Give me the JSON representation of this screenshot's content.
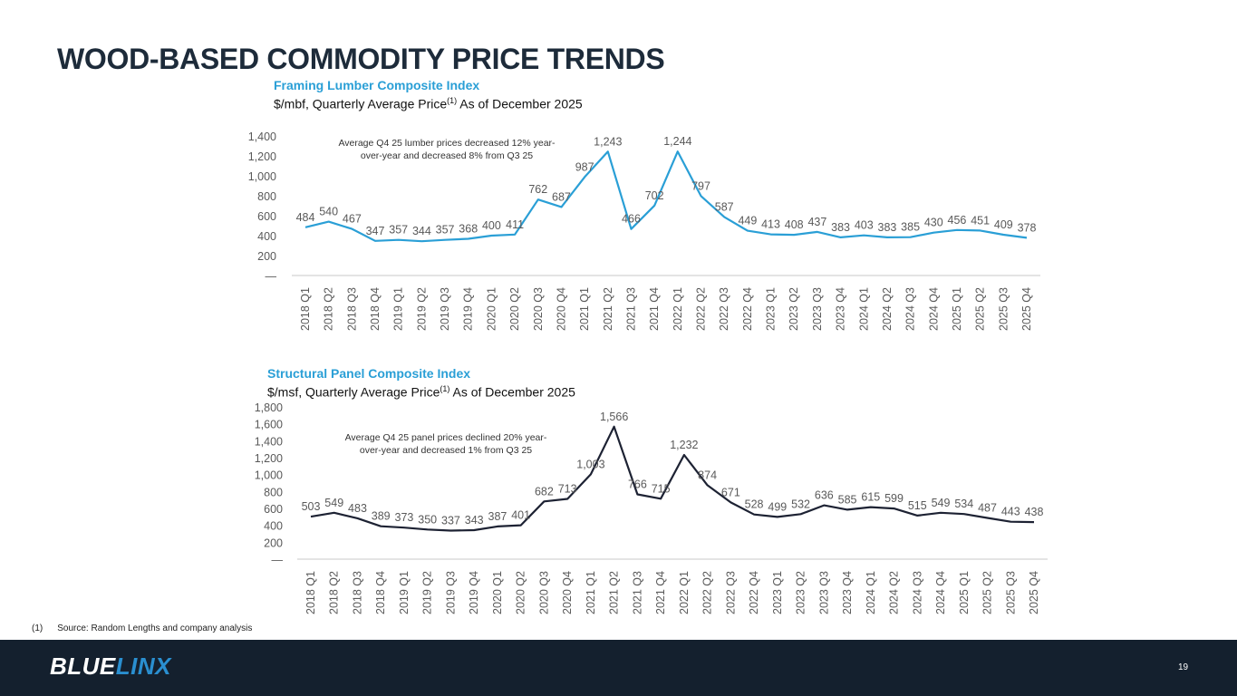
{
  "title": "WOOD-BASED COMMODITY PRICE TRENDS",
  "colors": {
    "lumber_line": "#2a9fd6",
    "panel_line": "#1d2233",
    "title": "#1d2b3a",
    "label": "#595959",
    "footer_bg": "#14202e",
    "logo_accent": "#2a8fd0"
  },
  "chart_data": [
    {
      "type": "line",
      "title": "Framing Lumber Composite Index",
      "subtitle": "$/mbf, Quarterly Average Price",
      "subtitle_sup": "(1)",
      "subtitle_suffix": " As of December 2025",
      "annotation": [
        "Average Q4 25 lumber prices decreased 12% year-",
        "over-year and decreased 8% from Q3 25"
      ],
      "ylim": [
        0,
        1400
      ],
      "yticks": [
        0,
        200,
        400,
        600,
        800,
        1000,
        1200,
        1400
      ],
      "ytick_labels": [
        "—",
        "200",
        "400",
        "600",
        "800",
        "1,000",
        "1,200",
        "1,400"
      ],
      "categories": [
        "2018 Q1",
        "2018 Q2",
        "2018 Q3",
        "2018 Q4",
        "2019 Q1",
        "2019 Q2",
        "2019 Q3",
        "2019 Q4",
        "2020 Q1",
        "2020 Q2",
        "2020 Q3",
        "2020 Q4",
        "2021 Q1",
        "2021 Q2",
        "2021 Q3",
        "2021 Q4",
        "2022 Q1",
        "2022 Q2",
        "2022 Q3",
        "2022 Q4",
        "2023 Q1",
        "2023 Q2",
        "2023 Q3",
        "2023 Q4",
        "2024 Q1",
        "2024 Q2",
        "2024 Q3",
        "2024 Q4",
        "2025 Q1",
        "2025 Q2",
        "2025 Q3",
        "2025 Q4"
      ],
      "values": [
        484,
        540,
        467,
        347,
        357,
        344,
        357,
        368,
        400,
        411,
        762,
        687,
        987,
        1243,
        466,
        702,
        1244,
        797,
        587,
        449,
        413,
        408,
        437,
        383,
        403,
        383,
        385,
        430,
        456,
        451,
        409,
        378
      ],
      "value_labels": [
        "484",
        "540",
        "467",
        "347",
        "357",
        "344",
        "357",
        "368",
        "400",
        "411",
        "762",
        "687",
        "987",
        "1,243",
        "466",
        "702",
        "1,244",
        "797",
        "587",
        "449",
        "413",
        "408",
        "437",
        "383",
        "403",
        "383",
        "385",
        "430",
        "456",
        "451",
        "409",
        "378"
      ]
    },
    {
      "type": "line",
      "title": "Structural Panel Composite Index",
      "subtitle": "$/msf, Quarterly Average Price",
      "subtitle_sup": "(1)",
      "subtitle_suffix": " As of December 2025",
      "annotation": [
        "Average Q4 25 panel prices declined 20% year-",
        "over-year and decreased 1% from Q3 25"
      ],
      "ylim": [
        0,
        1800
      ],
      "yticks": [
        0,
        200,
        400,
        600,
        800,
        1000,
        1200,
        1400,
        1600,
        1800
      ],
      "ytick_labels": [
        "—",
        "200",
        "400",
        "600",
        "800",
        "1,000",
        "1,200",
        "1,400",
        "1,600",
        "1,800"
      ],
      "categories": [
        "2018 Q1",
        "2018 Q2",
        "2018 Q3",
        "2018 Q4",
        "2019 Q1",
        "2019 Q2",
        "2019 Q3",
        "2019 Q4",
        "2020 Q1",
        "2020 Q2",
        "2020 Q3",
        "2020 Q4",
        "2021 Q1",
        "2021 Q2",
        "2021 Q3",
        "2021 Q4",
        "2022 Q1",
        "2022 Q2",
        "2022 Q3",
        "2022 Q4",
        "2023 Q1",
        "2023 Q2",
        "2023 Q3",
        "2023 Q4",
        "2024 Q1",
        "2024 Q2",
        "2024 Q3",
        "2024 Q4",
        "2025 Q1",
        "2025 Q2",
        "2025 Q3",
        "2025 Q4"
      ],
      "values": [
        503,
        549,
        483,
        389,
        373,
        350,
        337,
        343,
        387,
        401,
        682,
        713,
        1003,
        1566,
        766,
        715,
        1232,
        874,
        671,
        528,
        499,
        532,
        636,
        585,
        615,
        599,
        515,
        549,
        534,
        487,
        443,
        438
      ],
      "value_labels": [
        "503",
        "549",
        "483",
        "389",
        "373",
        "350",
        "337",
        "343",
        "387",
        "401",
        "682",
        "713",
        "1,003",
        "1,566",
        "766",
        "715",
        "1,232",
        "874",
        "671",
        "528",
        "499",
        "532",
        "636",
        "585",
        "615",
        "599",
        "515",
        "549",
        "534",
        "487",
        "443",
        "438"
      ]
    }
  ],
  "footnote": {
    "marker": "(1)",
    "text": "Source:  Random Lengths and company analysis"
  },
  "footer": {
    "logo_part1": "BLUE",
    "logo_part2": "LINX",
    "page_number": "19"
  }
}
